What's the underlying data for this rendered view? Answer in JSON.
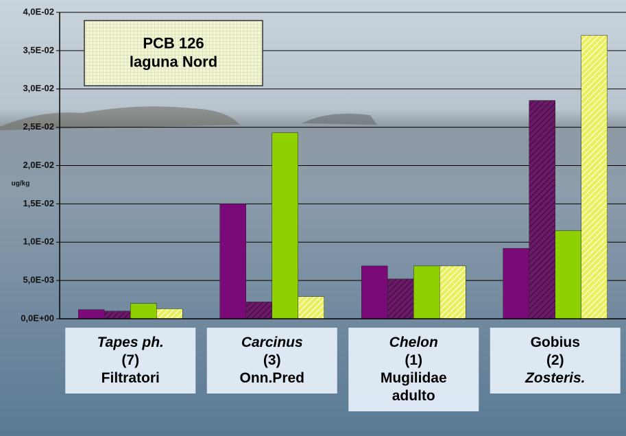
{
  "chart_data": {
    "type": "bar",
    "annotation": "PCB 126\nlaguna Nord",
    "y_label": "ug/kg",
    "categories": [
      "Tapes ph.\n(7)\nFiltratori",
      "Carcinus\n(3)\nOnn.Pred",
      "Chelon\n(1)\nMugilidae\nadulto",
      "Gobius\n(2)\nZosteris."
    ],
    "series": [
      {
        "color": "#7a0a78",
        "values": [
          0.0012,
          0.015,
          0.0069,
          0.0092
        ]
      },
      {
        "color": "#6a1a66",
        "values": [
          0.001,
          0.0022,
          0.0052,
          0.0285
        ]
      },
      {
        "color": "#8ed000",
        "values": [
          0.002,
          0.0243,
          0.0069,
          0.0115
        ]
      },
      {
        "color": "#e8f060",
        "values": [
          0.0013,
          0.0029,
          0.0069,
          0.037
        ]
      }
    ],
    "ylim": [
      0,
      0.04
    ],
    "yticks": [
      {
        "value": 0,
        "label": "0,0E+00"
      },
      {
        "value": 0.005,
        "label": "5,0E-03"
      },
      {
        "value": 0.01,
        "label": "1,0E-02"
      },
      {
        "value": 0.015,
        "label": "1,5E-02"
      },
      {
        "value": 0.02,
        "label": "2,0E-02"
      },
      {
        "value": 0.025,
        "label": "2,5E-02"
      },
      {
        "value": 0.03,
        "label": "3,0E-02"
      },
      {
        "value": 0.035,
        "label": "3,5E-02"
      },
      {
        "value": 0.04,
        "label": "4,0E-02"
      }
    ],
    "grid": true
  }
}
